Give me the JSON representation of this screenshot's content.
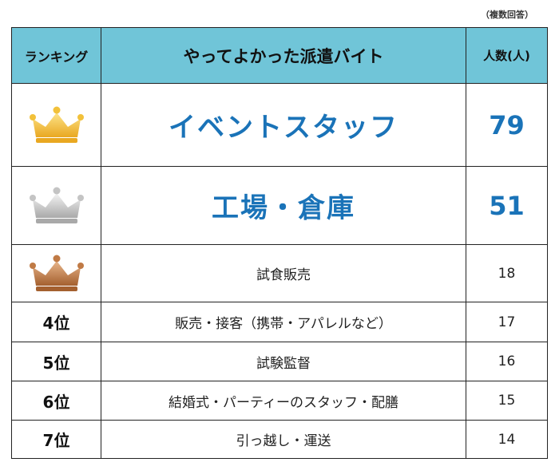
{
  "note": "（複数回答）",
  "header": {
    "rank": "ランキング",
    "title": "やってよかった派遣バイト",
    "count": "人数(人)"
  },
  "rows": [
    {
      "rank": "",
      "medal": "gold",
      "name": "イベントスタッフ",
      "count": "79"
    },
    {
      "rank": "",
      "medal": "silver",
      "name": "工場・倉庫",
      "count": "51"
    },
    {
      "rank": "",
      "medal": "bronze",
      "name": "試食販売",
      "count": "18"
    },
    {
      "rank": "4位",
      "medal": "",
      "name": "販売・接客（携帯・アパレルなど）",
      "count": "17"
    },
    {
      "rank": "5位",
      "medal": "",
      "name": "試験監督",
      "count": "16"
    },
    {
      "rank": "6位",
      "medal": "",
      "name": "結婚式・パーティーのスタッフ・配膳",
      "count": "15"
    },
    {
      "rank": "7位",
      "medal": "",
      "name": "引っ越し・運送",
      "count": "14"
    }
  ],
  "colors": {
    "header_bg": "#70c5d8",
    "accent_text": "#1a73b8",
    "gold": "#f2c13a",
    "silver": "#c4c4c4",
    "bronze": "#c07a45"
  }
}
